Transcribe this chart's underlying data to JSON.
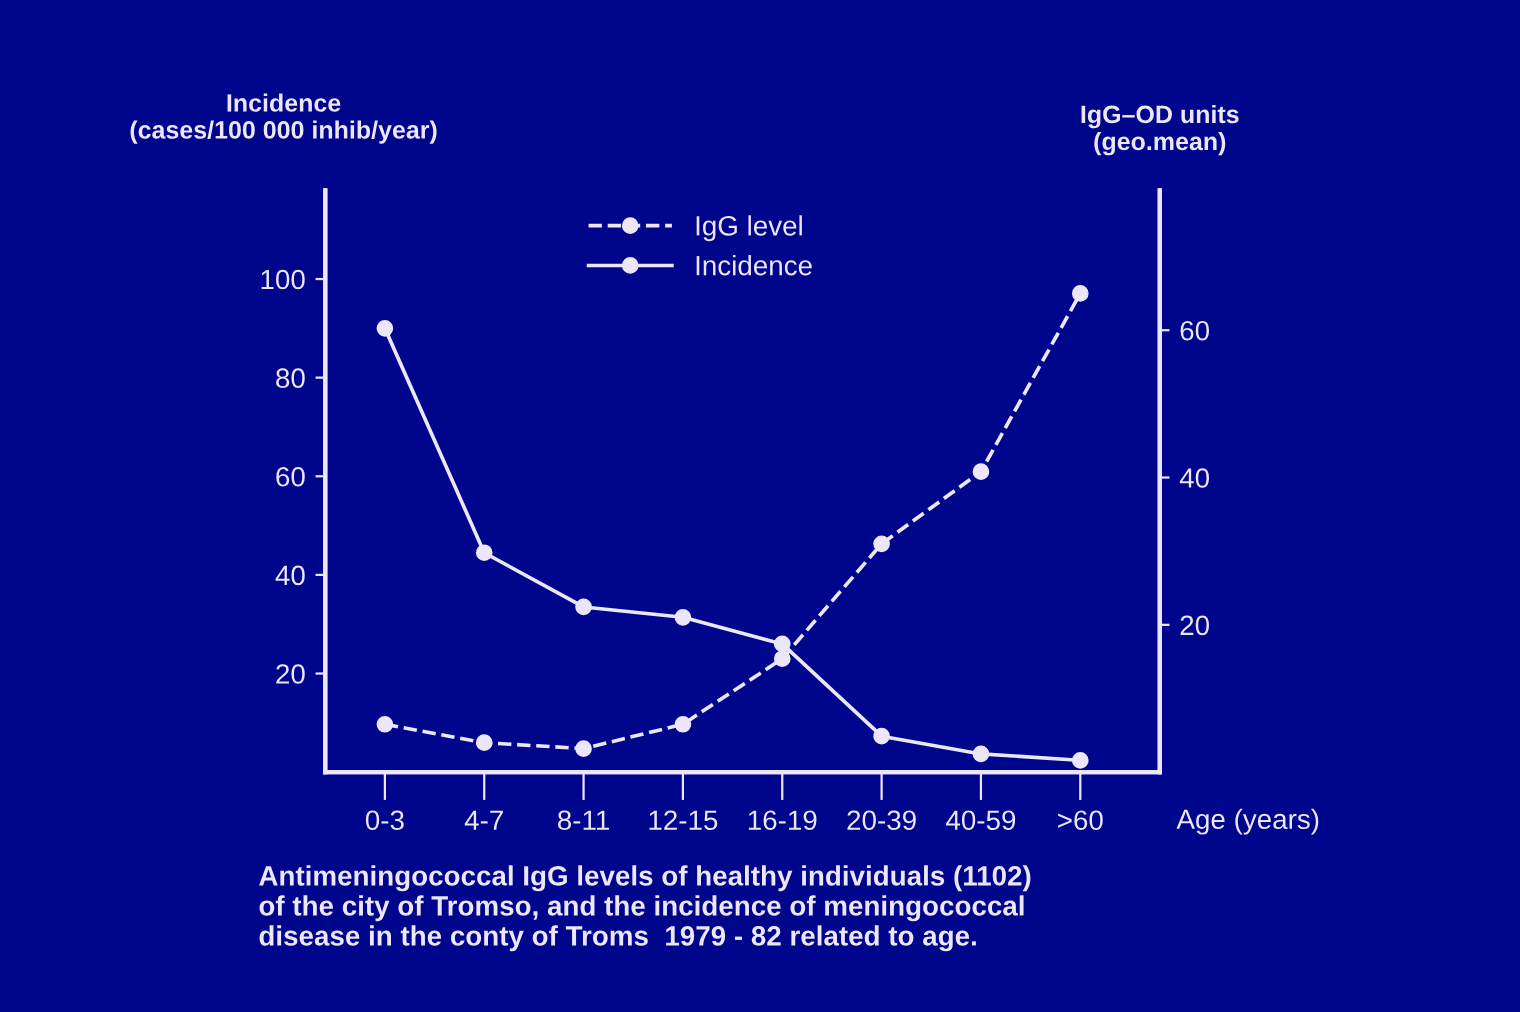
{
  "chart_data": {
    "type": "line",
    "ylabel": "Incidence\n(cases/100 000 inhib/year)",
    "y2label": "IgG–OD units\n(geo.mean)",
    "xlabel": "Age (years)",
    "categories": [
      "0-3",
      "4-7",
      "8-11",
      "12-15",
      "16-19",
      "20-39",
      "40-59",
      ">60"
    ],
    "series": [
      {
        "name": "IgG level",
        "color": "#ece6fa",
        "axis": "y2",
        "line_style": "dashed",
        "values": [
          6.5,
          4,
          3.2,
          6.5,
          15.4,
          31,
          40.8,
          65
        ]
      },
      {
        "name": "Incidence",
        "color": "#ece6fa",
        "line_style": "solid",
        "values": [
          90,
          44.5,
          33.5,
          31.4,
          26,
          7.3,
          3.7,
          2.4
        ]
      }
    ],
    "ylim": [
      0,
      118
    ],
    "yticks": [
      20,
      40,
      60,
      80,
      100
    ],
    "y2lim": [
      0,
      79
    ],
    "y2ticks": [
      20,
      40,
      60
    ],
    "marker": "circle",
    "grid": false,
    "legend": "top",
    "annotations": [
      "Antimeningococcal IgG levels of healthy individuals (1102)\nof the city of Tromso, and the incidence of meningococcal\ndisease in the conty of Troms  1979 - 82 related to age."
    ]
  }
}
